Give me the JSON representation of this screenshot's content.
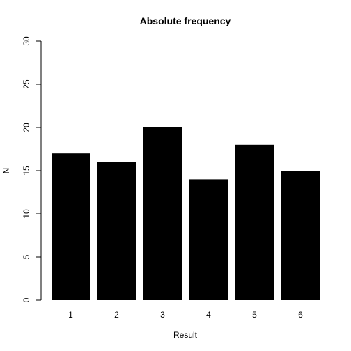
{
  "chart_data": {
    "type": "bar",
    "title": "Absolute frequency",
    "xlabel": "Result",
    "ylabel": "N",
    "categories": [
      "1",
      "2",
      "3",
      "4",
      "5",
      "6"
    ],
    "values": [
      17,
      16,
      20,
      14,
      18,
      15
    ],
    "ylim": [
      0,
      30
    ],
    "yticks": [
      "0",
      "5",
      "10",
      "15",
      "20",
      "25",
      "30"
    ],
    "bar_color": "#000000",
    "grid": false,
    "legend": "none"
  }
}
